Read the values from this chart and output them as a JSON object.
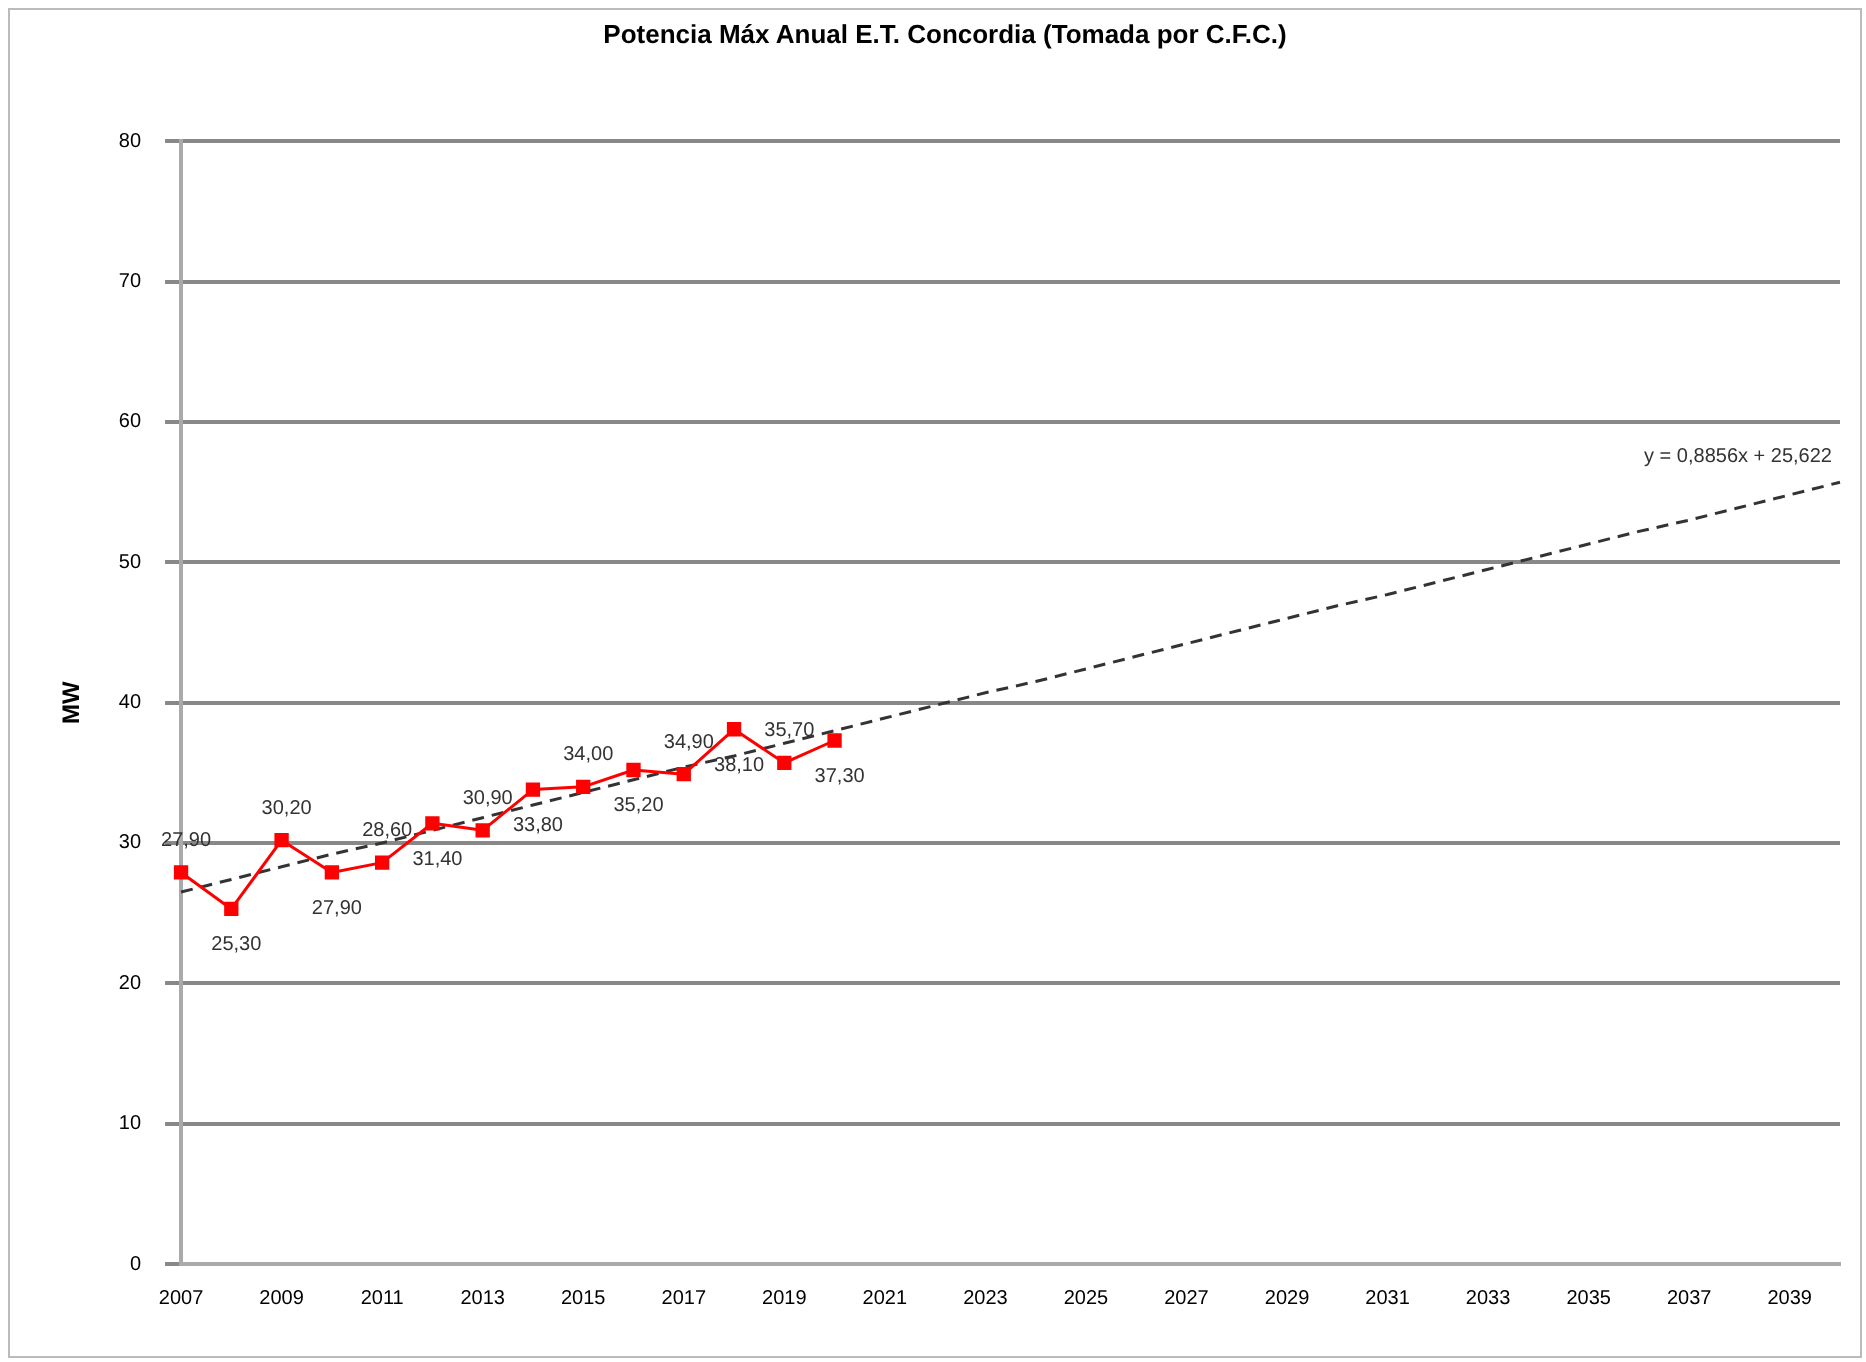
{
  "chart_data": {
    "type": "line",
    "title": "Potencia Máx Anual E.T. Concordia (Tomada por C.F.C.)",
    "ylabel": "MW",
    "categories": [
      "2007",
      null,
      "2009",
      null,
      "2011",
      null,
      "2013",
      null,
      "2015",
      null,
      "2017",
      null,
      "2019",
      null,
      "2021",
      null,
      "2023",
      null,
      "2025",
      null,
      "2027",
      null,
      "2029",
      null,
      "2031",
      null,
      "2033",
      null,
      "2035",
      null,
      "2037",
      null,
      "2039",
      null
    ],
    "series": [
      {
        "color": "#ff0000",
        "marker": "square",
        "line_style": "solid",
        "values": [
          27.9,
          25.3,
          30.2,
          27.9,
          28.6,
          31.4,
          30.9,
          33.8,
          34.0,
          35.2,
          34.9,
          38.1,
          35.7,
          37.3,
          null,
          null,
          null,
          null,
          null,
          null,
          null,
          null,
          null,
          null,
          null,
          null,
          null,
          null,
          null,
          null,
          null,
          null,
          null,
          null
        ],
        "value_labels": [
          "27,90",
          "25,30",
          "30,20",
          "27,90",
          "28,60",
          "31,40",
          "30,90",
          "33,80",
          "34,00",
          "35,20",
          "34,90",
          "38,10",
          "35,70",
          "37,30",
          null,
          null,
          null,
          null,
          null,
          null,
          null,
          null,
          null,
          null,
          null,
          null,
          null,
          null,
          null,
          null,
          null,
          null,
          null,
          null
        ]
      },
      {
        "type": "line",
        "color": "#333333",
        "marker": "none",
        "line_style": "dashed",
        "values": [
          26.5,
          27.4,
          28.3,
          29.2,
          30.0,
          30.9,
          31.8,
          32.7,
          33.6,
          34.5,
          35.4,
          36.2,
          37.1,
          38.0,
          38.9,
          39.8,
          40.7,
          41.5,
          42.4,
          43.3,
          44.2,
          45.1,
          46.0,
          46.9,
          47.7,
          48.6,
          49.5,
          50.4,
          51.3,
          52.2,
          53.0,
          53.9,
          54.8,
          55.7
        ]
      }
    ],
    "annotations": [
      "y = 0,8856x + 25,622"
    ],
    "ylim": [
      0,
      80
    ],
    "yticks": [
      0,
      10,
      20,
      30,
      40,
      50,
      60,
      70,
      80
    ],
    "grid": "y",
    "legend": false
  }
}
